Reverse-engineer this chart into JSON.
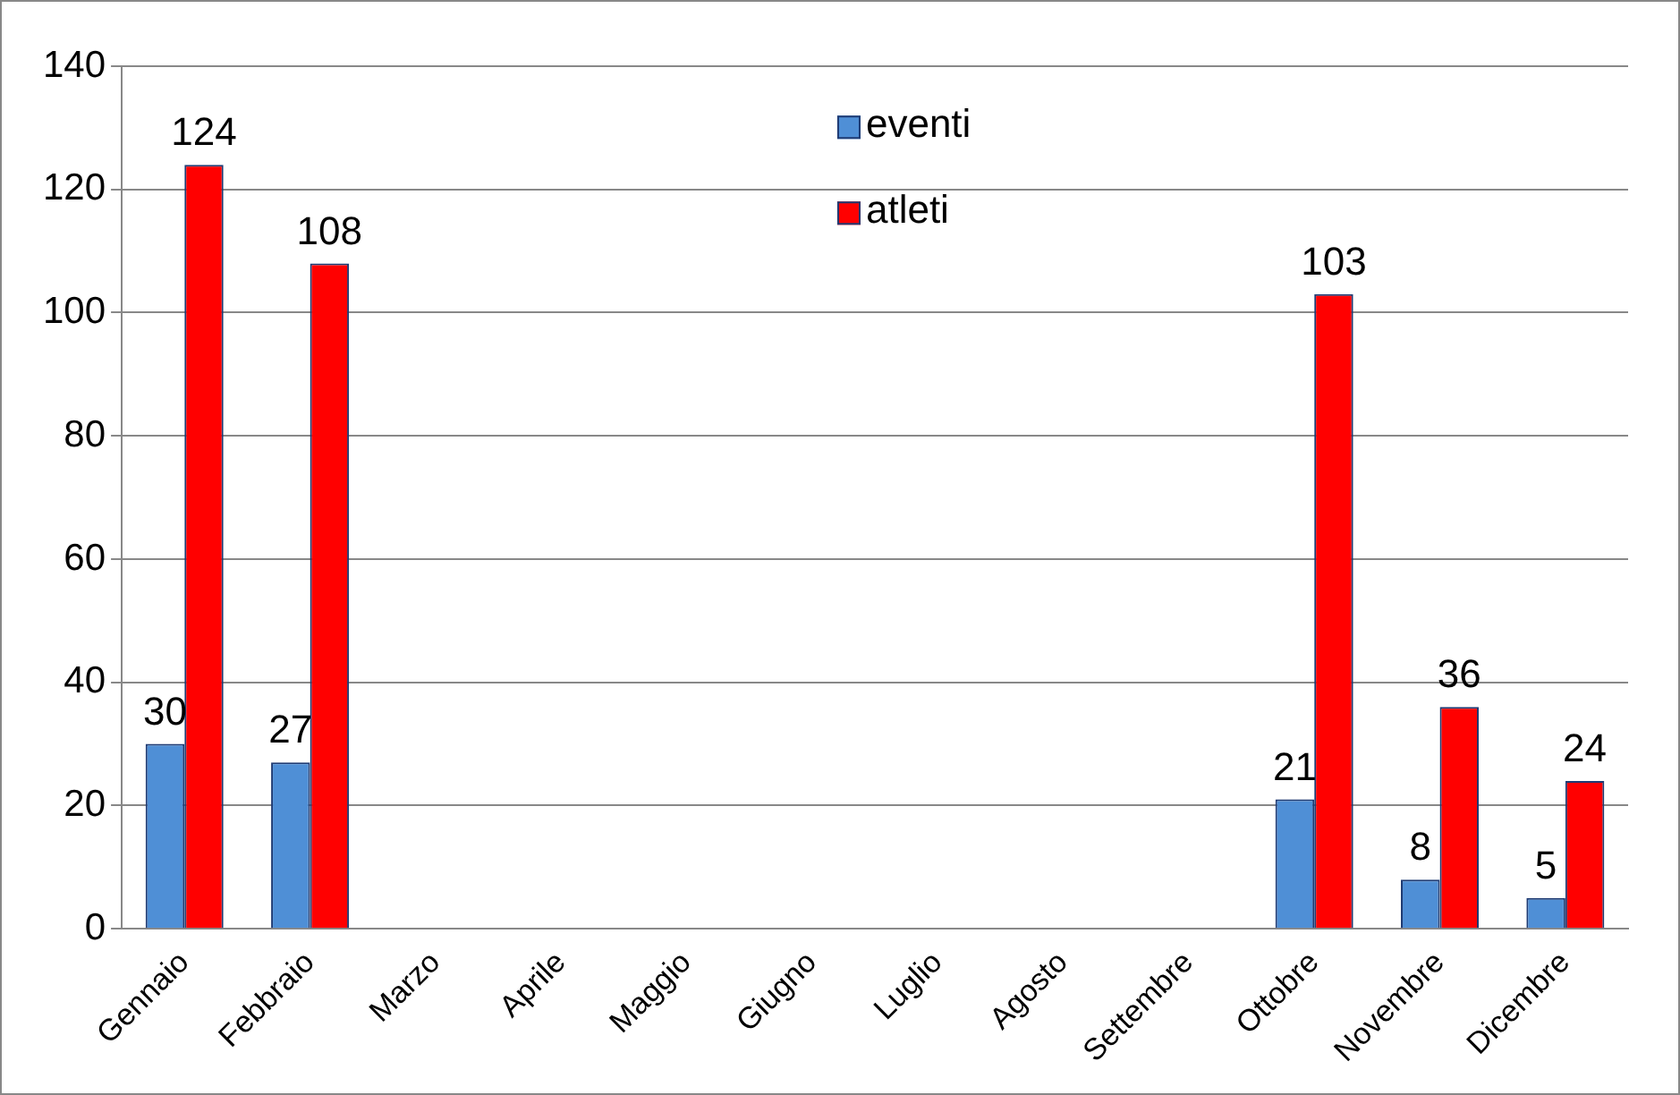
{
  "chart_data": {
    "type": "bar",
    "categories": [
      "Gennaio",
      "Febbraio",
      "Marzo",
      "Aprile",
      "Maggio",
      "Giugno",
      "Luglio",
      "Agosto",
      "Settembre",
      "Ottobre",
      "Novembre",
      "Dicembre"
    ],
    "series": [
      {
        "name": "eventi",
        "color": "#4f8fd6",
        "values": [
          30,
          27,
          null,
          null,
          null,
          null,
          null,
          null,
          null,
          21,
          8,
          5
        ]
      },
      {
        "name": "atleti",
        "color": "#ff0000",
        "values": [
          124,
          108,
          null,
          null,
          null,
          null,
          null,
          null,
          null,
          103,
          36,
          24
        ]
      }
    ],
    "ylim": [
      0,
      140
    ],
    "yticks": [
      0,
      20,
      40,
      60,
      80,
      100,
      120,
      140
    ],
    "grid": "y",
    "legend": "top",
    "data_labels": true
  }
}
